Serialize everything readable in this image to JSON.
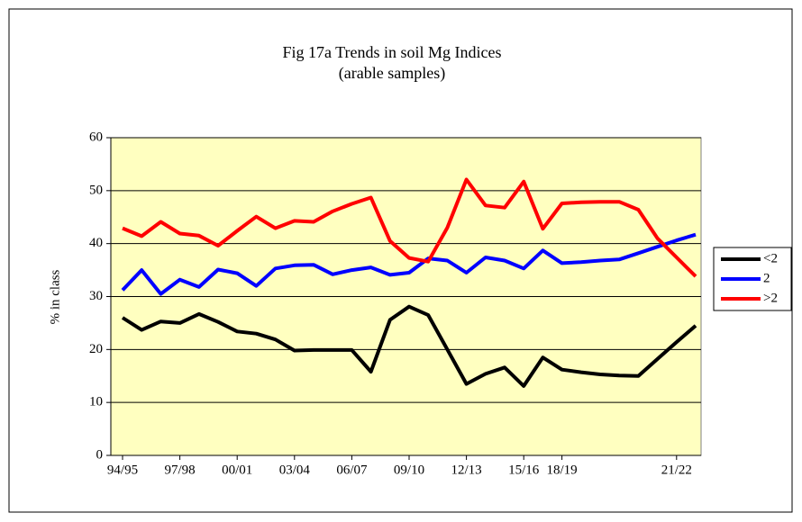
{
  "chart_data": {
    "type": "line",
    "title": "Fig 17a Trends in soil Mg Indices",
    "subtitle": "(arable samples)",
    "y_label": "% in class",
    "categories": [
      "94/95",
      null,
      null,
      "97/98",
      null,
      null,
      "00/01",
      null,
      null,
      "03/04",
      null,
      null,
      "06/07",
      null,
      null,
      "09/10",
      null,
      null,
      "12/13",
      null,
      null,
      "15/16",
      null,
      "18/19",
      null,
      null,
      null,
      null,
      null,
      "21/22",
      null
    ],
    "series": [
      {
        "name": "<2",
        "color": "#000000",
        "values": [
          26.0,
          23.7,
          25.3,
          25.0,
          26.7,
          25.2,
          23.4,
          23.0,
          21.9,
          19.8,
          19.9,
          19.9,
          19.9,
          15.8,
          25.6,
          28.1,
          26.5,
          20.0,
          13.5,
          15.4,
          16.6,
          13.1,
          18.5,
          16.2,
          15.7,
          15.3,
          15.1,
          15.0,
          18.2,
          21.4,
          24.5
        ]
      },
      {
        "name": "2",
        "color": "#0000ff",
        "values": [
          31.2,
          35.0,
          30.5,
          33.2,
          31.8,
          35.1,
          34.4,
          32.0,
          35.3,
          35.9,
          36.0,
          34.2,
          35.0,
          35.5,
          34.1,
          34.5,
          37.2,
          36.8,
          34.5,
          37.4,
          36.8,
          35.3,
          38.7,
          36.3,
          36.5,
          36.8,
          37.0,
          38.2,
          39.4,
          40.6,
          41.7
        ]
      },
      {
        "name": ">2",
        "color": "#ff0000",
        "values": [
          42.9,
          41.4,
          44.1,
          41.9,
          41.5,
          39.6,
          42.4,
          45.1,
          42.9,
          44.3,
          44.1,
          46.1,
          47.5,
          48.7,
          40.5,
          37.3,
          36.6,
          43.0,
          52.1,
          47.2,
          46.8,
          51.7,
          42.8,
          47.6,
          47.8,
          47.9,
          47.9,
          46.4,
          41.0,
          37.4,
          33.8
        ]
      }
    ],
    "ylim": [
      0,
      60
    ],
    "yticks": [
      0,
      10,
      20,
      30,
      40,
      50,
      60
    ],
    "grid": true,
    "legend": "right",
    "plot_background": "#ffffc0"
  }
}
